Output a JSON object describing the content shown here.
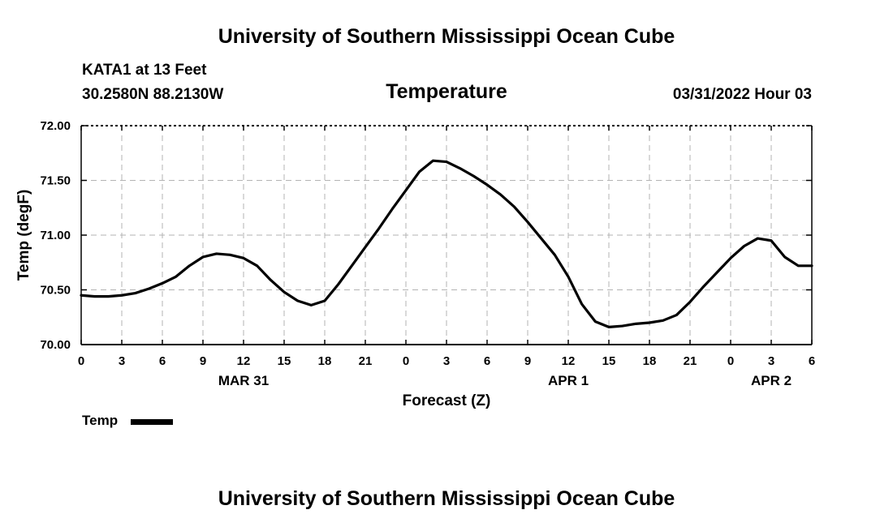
{
  "header": {
    "title": "University of Southern Mississippi Ocean Cube",
    "station": "KATA1 at 13 Feet",
    "coords": "30.2580N  88.2130W",
    "datetime": "03/31/2022 Hour 03"
  },
  "footer": {
    "title": "University of Southern Mississippi Ocean Cube"
  },
  "legend": {
    "label": "Temp",
    "color": "#000000"
  },
  "chart_data": {
    "type": "line",
    "title": "Temperature",
    "xlabel": "Forecast (Z)",
    "ylabel": "Temp (degF)",
    "ylim": [
      70.0,
      72.0
    ],
    "yticks": [
      "70.00",
      "70.50",
      "71.00",
      "71.50",
      "72.00"
    ],
    "x_tick_labels": [
      "0",
      "3",
      "6",
      "9",
      "12",
      "15",
      "18",
      "21",
      "0",
      "3",
      "6",
      "9",
      "12",
      "15",
      "18",
      "21",
      "0",
      "3",
      "6"
    ],
    "day_labels": [
      {
        "label": "MAR 31",
        "at_hour": 12
      },
      {
        "label": "APR 1",
        "at_hour": 36
      },
      {
        "label": "APR 2",
        "at_hour": 51
      }
    ],
    "xlim_hours": [
      0,
      54
    ],
    "grid": true,
    "series": [
      {
        "name": "Temp",
        "color": "#000000",
        "x_hours": [
          0,
          1,
          2,
          3,
          4,
          5,
          6,
          7,
          8,
          9,
          10,
          11,
          12,
          13,
          14,
          15,
          16,
          17,
          18,
          19,
          20,
          21,
          22,
          23,
          24,
          25,
          26,
          27,
          28,
          29,
          30,
          31,
          32,
          33,
          34,
          35,
          36,
          37,
          38,
          39,
          40,
          41,
          42,
          43,
          44,
          45,
          46,
          47,
          48,
          49,
          50,
          51,
          52,
          53,
          54
        ],
        "values": [
          70.45,
          70.44,
          70.44,
          70.45,
          70.47,
          70.51,
          70.56,
          70.62,
          70.72,
          70.8,
          70.83,
          70.82,
          70.79,
          70.72,
          70.59,
          70.48,
          70.4,
          70.36,
          70.4,
          70.55,
          70.72,
          70.89,
          71.06,
          71.24,
          71.41,
          71.58,
          71.68,
          71.67,
          71.61,
          71.54,
          71.46,
          71.37,
          71.26,
          71.12,
          70.97,
          70.82,
          70.62,
          70.37,
          70.21,
          70.16,
          70.17,
          70.19,
          70.2,
          70.22,
          70.27,
          70.39,
          70.53,
          70.66,
          70.79,
          70.9,
          70.97,
          70.95,
          70.8,
          70.72,
          70.72
        ]
      }
    ]
  }
}
